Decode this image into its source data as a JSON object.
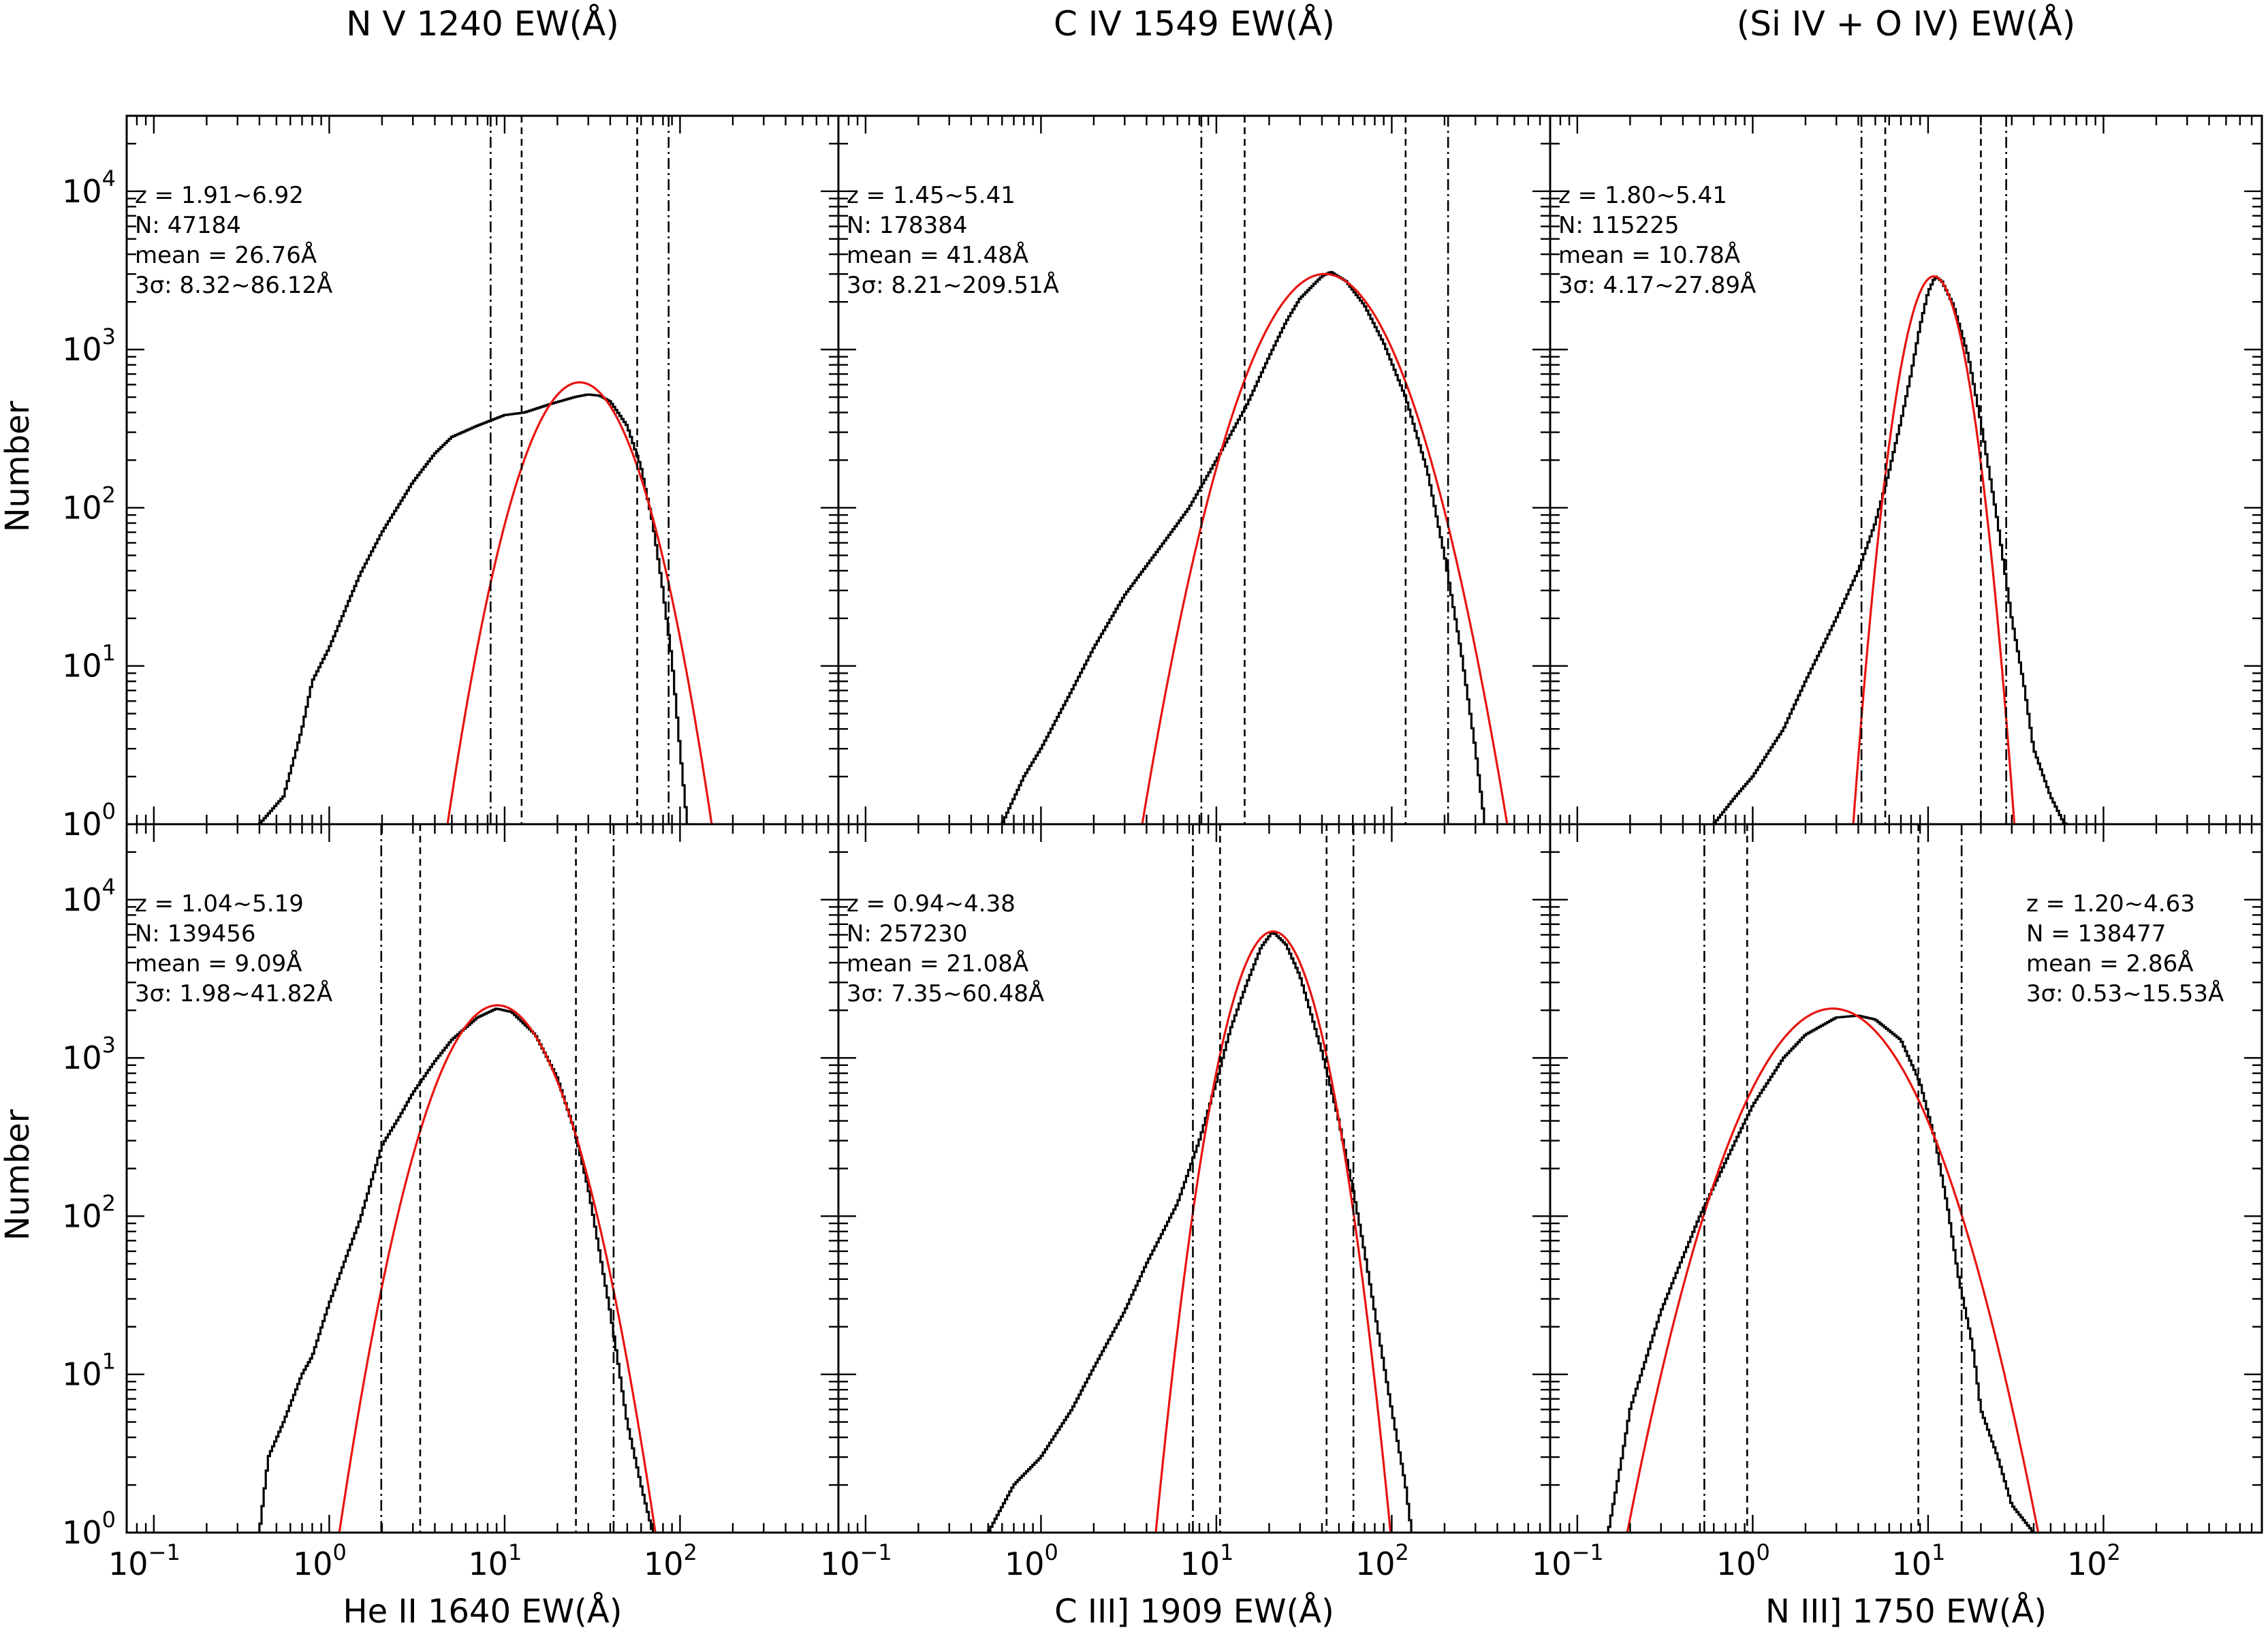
{
  "figure": {
    "ylabel": "Number",
    "colors": {
      "histogram": "#000000",
      "fit": "#e8140f",
      "lines": "#000000",
      "background": "#ffffff"
    }
  },
  "chart_data": [
    {
      "type": "histogram",
      "title": "N V 1240 EW(Å)",
      "xlabel": "",
      "xscale": "log",
      "yscale": "log",
      "xlim": [
        0.07,
        800
      ],
      "ylim": [
        1,
        30000
      ],
      "annotation_align": "left",
      "annotations": [
        "z = 1.91~6.92",
        "N: 47184",
        "mean = 26.76Å",
        "3σ: 8.32~86.12Å"
      ],
      "hist_points": [
        [
          0.4,
          1
        ],
        [
          0.55,
          1.5
        ],
        [
          0.7,
          4
        ],
        [
          0.8,
          8
        ],
        [
          1,
          13
        ],
        [
          1.5,
          38
        ],
        [
          2,
          70
        ],
        [
          3,
          145
        ],
        [
          4,
          220
        ],
        [
          5,
          280
        ],
        [
          7,
          330
        ],
        [
          10,
          385
        ],
        [
          13,
          400
        ],
        [
          18,
          450
        ],
        [
          25,
          500
        ],
        [
          30,
          520
        ],
        [
          35,
          510
        ],
        [
          40,
          470
        ],
        [
          50,
          330
        ],
        [
          60,
          180
        ],
        [
          70,
          80
        ],
        [
          80,
          30
        ],
        [
          90,
          11
        ],
        [
          100,
          3
        ],
        [
          110,
          1
        ]
      ],
      "fit": {
        "peak": 620,
        "center": 26.76,
        "sigma_dex": 0.21
      },
      "vlines": [
        {
          "x": 8.32,
          "style": "dashdot"
        },
        {
          "x": 12.5,
          "style": "dashed"
        },
        {
          "x": 57,
          "style": "dashed"
        },
        {
          "x": 86.12,
          "style": "dashdot"
        }
      ]
    },
    {
      "type": "histogram",
      "title": "C IV 1549 EW(Å)",
      "xlabel": "",
      "xscale": "log",
      "yscale": "log",
      "xlim": [
        0.07,
        800
      ],
      "ylim": [
        1,
        30000
      ],
      "annotation_align": "left",
      "annotations": [
        "z = 1.45~5.41",
        "N: 178384",
        "mean = 41.48Å",
        "3σ: 8.21~209.51Å"
      ],
      "hist_points": [
        [
          0.6,
          1
        ],
        [
          0.8,
          2
        ],
        [
          1,
          3
        ],
        [
          1.5,
          7
        ],
        [
          2,
          13
        ],
        [
          3,
          28
        ],
        [
          5,
          60
        ],
        [
          7,
          100
        ],
        [
          10,
          200
        ],
        [
          15,
          450
        ],
        [
          20,
          900
        ],
        [
          25,
          1500
        ],
        [
          30,
          2100
        ],
        [
          40,
          2900
        ],
        [
          45,
          3100
        ],
        [
          55,
          2700
        ],
        [
          70,
          1900
        ],
        [
          90,
          1100
        ],
        [
          120,
          500
        ],
        [
          160,
          170
        ],
        [
          200,
          50
        ],
        [
          250,
          12
        ],
        [
          300,
          3
        ],
        [
          340,
          1
        ]
      ],
      "fit": {
        "peak": 3000,
        "center": 41.48,
        "sigma_dex": 0.26
      },
      "vlines": [
        {
          "x": 8.21,
          "style": "dashdot"
        },
        {
          "x": 14.5,
          "style": "dashed"
        },
        {
          "x": 120,
          "style": "dashed"
        },
        {
          "x": 209.51,
          "style": "dashdot"
        }
      ]
    },
    {
      "type": "histogram",
      "title": "(Si IV + O IV) EW(Å)",
      "xlabel": "",
      "xscale": "log",
      "yscale": "log",
      "xlim": [
        0.07,
        800
      ],
      "ylim": [
        1,
        30000
      ],
      "annotation_align": "left",
      "annotations": [
        "z = 1.80~5.41",
        "N: 115225",
        "mean = 10.78Å",
        "3σ: 4.17~27.89Å"
      ],
      "hist_points": [
        [
          0.6,
          1
        ],
        [
          0.8,
          1.5
        ],
        [
          1,
          2
        ],
        [
          1.5,
          4
        ],
        [
          2,
          8
        ],
        [
          3,
          20
        ],
        [
          4,
          40
        ],
        [
          5,
          80
        ],
        [
          6,
          170
        ],
        [
          7,
          350
        ],
        [
          8,
          700
        ],
        [
          9,
          1400
        ],
        [
          10,
          2300
        ],
        [
          11,
          2900
        ],
        [
          12,
          2700
        ],
        [
          14,
          1900
        ],
        [
          17,
          900
        ],
        [
          20,
          350
        ],
        [
          25,
          80
        ],
        [
          30,
          20
        ],
        [
          35,
          8
        ],
        [
          40,
          3
        ],
        [
          50,
          1.5
        ],
        [
          60,
          1
        ]
      ],
      "fit": {
        "peak": 2900,
        "center": 10.78,
        "sigma_dex": 0.115
      },
      "vlines": [
        {
          "x": 4.17,
          "style": "dashdot"
        },
        {
          "x": 5.7,
          "style": "dashed"
        },
        {
          "x": 20,
          "style": "dashed"
        },
        {
          "x": 27.89,
          "style": "dashdot"
        }
      ]
    },
    {
      "type": "histogram",
      "title": "",
      "xlabel": "He II 1640 EW(Å)",
      "xscale": "log",
      "yscale": "log",
      "xlim": [
        0.07,
        800
      ],
      "ylim": [
        1,
        30000
      ],
      "annotation_align": "left",
      "annotations": [
        "z = 1.04~5.19",
        "N: 139456",
        "mean = 9.09Å",
        "3σ: 1.98~41.82Å"
      ],
      "hist_points": [
        [
          0.4,
          1
        ],
        [
          0.45,
          3
        ],
        [
          0.55,
          5
        ],
        [
          0.7,
          10
        ],
        [
          0.8,
          13
        ],
        [
          1,
          28
        ],
        [
          1.5,
          95
        ],
        [
          2,
          280
        ],
        [
          2.5,
          420
        ],
        [
          3,
          600
        ],
        [
          4,
          950
        ],
        [
          5,
          1300
        ],
        [
          7,
          1800
        ],
        [
          9,
          2050
        ],
        [
          11,
          1950
        ],
        [
          15,
          1400
        ],
        [
          20,
          750
        ],
        [
          25,
          350
        ],
        [
          30,
          150
        ],
        [
          40,
          25
        ],
        [
          50,
          5
        ],
        [
          60,
          2
        ],
        [
          70,
          1
        ]
      ],
      "fit": {
        "peak": 2150,
        "center": 9.09,
        "sigma_dex": 0.23
      },
      "vlines": [
        {
          "x": 1.98,
          "style": "dashdot"
        },
        {
          "x": 3.3,
          "style": "dashed"
        },
        {
          "x": 25.5,
          "style": "dashed"
        },
        {
          "x": 41.82,
          "style": "dashdot"
        }
      ]
    },
    {
      "type": "histogram",
      "title": "",
      "xlabel": "C III] 1909 EW(Å)",
      "xscale": "log",
      "yscale": "log",
      "xlim": [
        0.07,
        800
      ],
      "ylim": [
        1,
        30000
      ],
      "annotation_align": "left",
      "annotations": [
        "z = 0.94~4.38",
        "N: 257230",
        "mean = 21.08Å",
        "3σ: 7.35~60.48Å"
      ],
      "hist_points": [
        [
          0.5,
          1
        ],
        [
          0.7,
          2
        ],
        [
          1,
          3
        ],
        [
          1.5,
          6
        ],
        [
          2,
          11
        ],
        [
          3,
          25
        ],
        [
          4,
          50
        ],
        [
          6,
          120
        ],
        [
          8,
          300
        ],
        [
          10,
          700
        ],
        [
          12,
          1500
        ],
        [
          15,
          3000
        ],
        [
          18,
          5000
        ],
        [
          21,
          6300
        ],
        [
          25,
          5200
        ],
        [
          30,
          3300
        ],
        [
          40,
          1100
        ],
        [
          50,
          400
        ],
        [
          60,
          150
        ],
        [
          70,
          60
        ],
        [
          80,
          25
        ],
        [
          100,
          6
        ],
        [
          120,
          2
        ],
        [
          130,
          1
        ]
      ],
      "fit": {
        "peak": 6300,
        "center": 21.08,
        "sigma_dex": 0.16
      },
      "vlines": [
        {
          "x": 7.35,
          "style": "dashdot"
        },
        {
          "x": 10.5,
          "style": "dashed"
        },
        {
          "x": 42.5,
          "style": "dashed"
        },
        {
          "x": 60.48,
          "style": "dashdot"
        }
      ]
    },
    {
      "type": "histogram",
      "title": "",
      "xlabel": "N III] 1750 EW(Å)",
      "xscale": "log",
      "yscale": "log",
      "xlim": [
        0.07,
        800
      ],
      "ylim": [
        1,
        30000
      ],
      "annotation_align": "right",
      "annotations": [
        "z = 1.20~4.63",
        "N = 138477",
        "mean = 2.86Å",
        "3σ: 0.53~15.53Å"
      ],
      "hist_points": [
        [
          0.15,
          1
        ],
        [
          0.18,
          3
        ],
        [
          0.2,
          6
        ],
        [
          0.3,
          25
        ],
        [
          0.4,
          55
        ],
        [
          0.5,
          100
        ],
        [
          0.7,
          220
        ],
        [
          1,
          500
        ],
        [
          1.5,
          1000
        ],
        [
          2,
          1400
        ],
        [
          3,
          1800
        ],
        [
          4,
          1850
        ],
        [
          5,
          1750
        ],
        [
          7,
          1300
        ],
        [
          9,
          700
        ],
        [
          11,
          300
        ],
        [
          13,
          110
        ],
        [
          15,
          40
        ],
        [
          18,
          15
        ],
        [
          20,
          6
        ],
        [
          25,
          3
        ],
        [
          30,
          1.5
        ],
        [
          40,
          1
        ]
      ],
      "fit": {
        "peak": 2050,
        "center": 2.86,
        "sigma_dex": 0.3
      },
      "vlines": [
        {
          "x": 0.53,
          "style": "dashdot"
        },
        {
          "x": 0.93,
          "style": "dashed"
        },
        {
          "x": 8.8,
          "style": "dashed"
        },
        {
          "x": 15.53,
          "style": "dashdot"
        }
      ]
    }
  ]
}
